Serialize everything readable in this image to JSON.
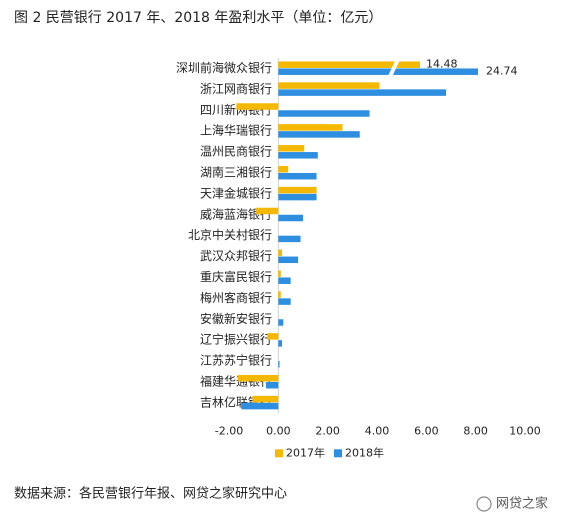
{
  "chart_data": {
    "type": "hbar",
    "title": "图 2  民营银行 2017 年、2018 年盈利水平（单位：亿元）",
    "source": "数据来源：各民营银行年报、网贷之家研究中心",
    "watermark": "网贷之家",
    "categories": [
      "深圳前海微众银行",
      "浙江网商银行",
      "四川新网银行",
      "上海华瑞银行",
      "温州民商银行",
      "湖南三湘银行",
      "天津金城银行",
      "威海蓝海银行",
      "北京中关村银行",
      "武汉众邦银行",
      "重庆富民银行",
      "梅州客商银行",
      "安徽新安银行",
      "辽宁振兴银行",
      "江苏苏宁银行",
      "福建华通银行",
      "吉林亿联银行"
    ],
    "series": [
      {
        "name": "2017年",
        "color": "#f5b800",
        "values": [
          14.48,
          4.1,
          -1.7,
          2.6,
          1.05,
          0.4,
          1.55,
          -0.9,
          0,
          0.15,
          0.1,
          0.1,
          0,
          -0.45,
          0,
          -1.65,
          -1.05
        ],
        "value_labels": [
          "14.48",
          null,
          null,
          null,
          null,
          null,
          null,
          null,
          null,
          null,
          null,
          null,
          null,
          null,
          null,
          null,
          null
        ]
      },
      {
        "name": "2018年",
        "color": "#2e8fe0",
        "values": [
          24.74,
          6.8,
          3.7,
          3.3,
          1.6,
          1.55,
          1.55,
          1.0,
          0.9,
          0.8,
          0.5,
          0.5,
          0.2,
          0.15,
          0.05,
          -0.5,
          -1.5
        ],
        "value_labels": [
          "24.74",
          null,
          null,
          null,
          null,
          null,
          null,
          null,
          null,
          null,
          null,
          null,
          null,
          null,
          null,
          null,
          null
        ]
      }
    ],
    "xlim": [
      -2,
      10
    ],
    "xticks": [
      {
        "value": -2,
        "label": "-2.00"
      },
      {
        "value": 0,
        "label": "0.00"
      },
      {
        "value": 2,
        "label": "2.00"
      },
      {
        "value": 4,
        "label": "4.00"
      },
      {
        "value": 6,
        "label": "6.00"
      },
      {
        "value": 8,
        "label": "8.00"
      },
      {
        "value": 10,
        "label": "10.00"
      }
    ],
    "legend": "bottom"
  }
}
